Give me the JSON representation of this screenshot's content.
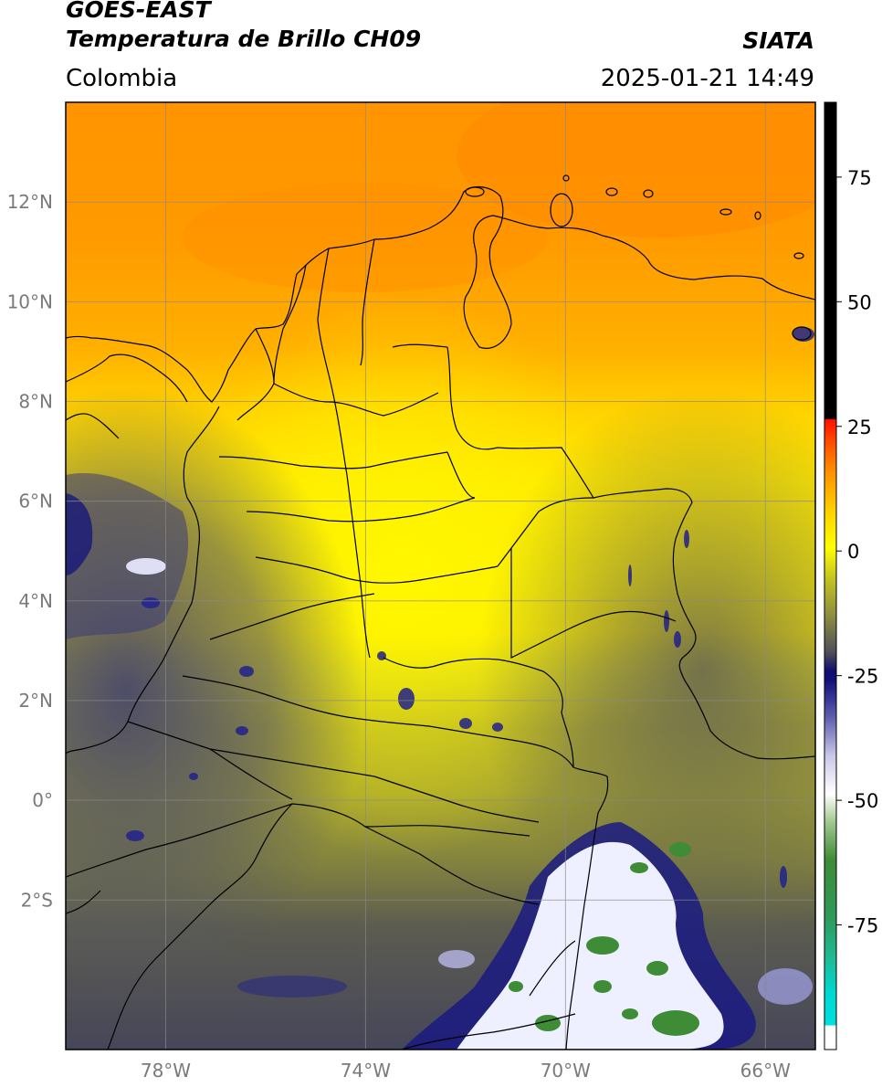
{
  "header": {
    "line1": "GOES-EAST",
    "line2": "Temperatura de Brillo CH09",
    "right_title": "SIATA",
    "region": "Colombia",
    "timestamp": "2025-01-21 14:49"
  },
  "axes": {
    "lat_ticks": [
      {
        "value": 12,
        "label": "12°N"
      },
      {
        "value": 10,
        "label": "10°N"
      },
      {
        "value": 8,
        "label": "8°N"
      },
      {
        "value": 6,
        "label": "6°N"
      },
      {
        "value": 4,
        "label": "4°N"
      },
      {
        "value": 2,
        "label": "2°N"
      },
      {
        "value": 0,
        "label": "0°"
      },
      {
        "value": -2,
        "label": "2°S"
      }
    ],
    "lon_ticks": [
      {
        "value": -78,
        "label": "78°W"
      },
      {
        "value": -74,
        "label": "74°W"
      },
      {
        "value": -70,
        "label": "70°W"
      },
      {
        "value": -66,
        "label": "66°W"
      }
    ],
    "lon_range": [
      -80,
      -65
    ],
    "lat_range": [
      -5,
      14
    ],
    "grid": true
  },
  "colorbar": {
    "range": [
      -100,
      90
    ],
    "ticks": [
      {
        "value": 75,
        "label": "75"
      },
      {
        "value": 50,
        "label": "50"
      },
      {
        "value": 25,
        "label": "25"
      },
      {
        "value": 0,
        "label": "0"
      },
      {
        "value": -25,
        "label": "-25"
      },
      {
        "value": -50,
        "label": "-50"
      },
      {
        "value": -75,
        "label": "-75"
      }
    ]
  },
  "colors": {
    "orange": "#ff9a00",
    "yellow": "#ffee00",
    "olive": "#a0a030",
    "gray_dark": "#505058",
    "navy": "#10106e",
    "white_cloud": "#f0f0ff",
    "green_cloud": "#3e8c36",
    "border": "#000000"
  }
}
